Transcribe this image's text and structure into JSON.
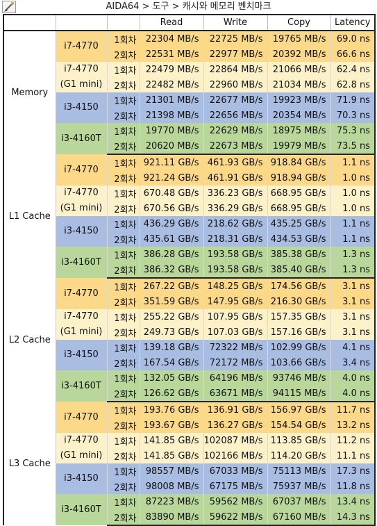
{
  "window": {
    "title": "AIDA64 > 도구 > 캐시와 메모리 벤치마크",
    "icon": "brush-icon"
  },
  "headers": [
    "",
    "",
    "",
    "Read",
    "Write",
    "Copy",
    "Latency"
  ],
  "colors": {
    "orange": "#fcd988",
    "cream": "#fdf1c9",
    "blue": "#a9bde3",
    "green": "#b9d79b"
  },
  "groups": [
    {
      "name": "Memory",
      "cpus": [
        {
          "label": [
            "i7-4770"
          ],
          "color": "orange",
          "runs": [
            {
              "run": "1회차",
              "read": "22304 MB/s",
              "write": "22725 MB/s",
              "copy": "19765 MB/s",
              "latency": "69.0 ns"
            },
            {
              "run": "2회차",
              "read": "22531 MB/s",
              "write": "22977 MB/s",
              "copy": "20392 MB/s",
              "latency": "66.6 ns"
            }
          ]
        },
        {
          "label": [
            "i7-4770",
            "(G1 mini)"
          ],
          "color": "cream",
          "runs": [
            {
              "run": "1회차",
              "read": "22479 MB/s",
              "write": "22864 MB/s",
              "copy": "21066 MB/s",
              "latency": "62.4 ns"
            },
            {
              "run": "2회차",
              "read": "22482 MB/s",
              "write": "22960 MB/s",
              "copy": "21034 MB/s",
              "latency": "62.8 ns"
            }
          ]
        },
        {
          "label": [
            "i3-4150"
          ],
          "color": "blue",
          "runs": [
            {
              "run": "1회차",
              "read": "21301 MB/s",
              "write": "22677 MB/s",
              "copy": "19923 MB/s",
              "latency": "71.9 ns"
            },
            {
              "run": "2회차",
              "read": "21398 MB/s",
              "write": "22656 MB/s",
              "copy": "20354 MB/s",
              "latency": "70.3 ns"
            }
          ]
        },
        {
          "label": [
            "i3-4160T"
          ],
          "color": "green",
          "runs": [
            {
              "run": "1회차",
              "read": "19770 MB/s",
              "write": "22629 MB/s",
              "copy": "18975 MB/s",
              "latency": "75.3 ns"
            },
            {
              "run": "2회차",
              "read": "20620 MB/s",
              "write": "22673 MB/s",
              "copy": "19979 MB/s",
              "latency": "73.5 ns"
            }
          ]
        }
      ]
    },
    {
      "name": "L1 Cache",
      "cpus": [
        {
          "label": [
            "i7-4770"
          ],
          "color": "orange",
          "runs": [
            {
              "run": "1회차",
              "read": "921.11 GB/s",
              "write": "461.93 GB/s",
              "copy": "918.84 GB/s",
              "latency": "1.1 ns"
            },
            {
              "run": "2회차",
              "read": "921.24 GB/s",
              "write": "461.91 GB/s",
              "copy": "918.94 GB/s",
              "latency": "1.0 ns"
            }
          ]
        },
        {
          "label": [
            "i7-4770",
            "(G1 mini)"
          ],
          "color": "cream",
          "runs": [
            {
              "run": "1회차",
              "read": "670.48 GB/s",
              "write": "336.23 GB/s",
              "copy": "668.95 GB/s",
              "latency": "1.0 ns"
            },
            {
              "run": "2회차",
              "read": "670.56 GB/s",
              "write": "336.29 GB/s",
              "copy": "668.95 GB/s",
              "latency": "1.0 ns"
            }
          ]
        },
        {
          "label": [
            "i3-4150"
          ],
          "color": "blue",
          "runs": [
            {
              "run": "1회차",
              "read": "436.29 GB/s",
              "write": "218.62 GB/s",
              "copy": "435.25 GB/s",
              "latency": "1.1 ns"
            },
            {
              "run": "2회차",
              "read": "435.61 GB/s",
              "write": "218.31 GB/s",
              "copy": "434.53 GB/s",
              "latency": "1.1 ns"
            }
          ]
        },
        {
          "label": [
            "i3-4160T"
          ],
          "color": "green",
          "runs": [
            {
              "run": "1회차",
              "read": "386.28 GB/s",
              "write": "193.58 GB/s",
              "copy": "385.38 GB/s",
              "latency": "1.3 ns"
            },
            {
              "run": "2회차",
              "read": "386.32 GB/s",
              "write": "193.58 GB/s",
              "copy": "385.40 GB/s",
              "latency": "1.3 ns"
            }
          ]
        }
      ]
    },
    {
      "name": "L2 Cache",
      "cpus": [
        {
          "label": [
            "i7-4770"
          ],
          "color": "orange",
          "runs": [
            {
              "run": "1회차",
              "read": "267.22 GB/s",
              "write": "148.25 GB/s",
              "copy": "174.56 GB/s",
              "latency": "3.1 ns"
            },
            {
              "run": "2회차",
              "read": "351.59 GB/s",
              "write": "147.95 GB/s",
              "copy": "216.30 GB/s",
              "latency": "3.1 ns"
            }
          ]
        },
        {
          "label": [
            "i7-4770",
            "(G1 mini)"
          ],
          "color": "cream",
          "runs": [
            {
              "run": "1회차",
              "read": "255.22 GB/s",
              "write": "107.95 GB/s",
              "copy": "157.35 GB/s",
              "latency": "3.1 ns"
            },
            {
              "run": "2회차",
              "read": "249.73 GB/s",
              "write": "107.03 GB/s",
              "copy": "157.16 GB/s",
              "latency": "3.1 ns"
            }
          ]
        },
        {
          "label": [
            "i3-4150"
          ],
          "color": "blue",
          "runs": [
            {
              "run": "1회차",
              "read": "139.18 GB/s",
              "write": "72322 MB/s",
              "copy": "102.99 GB/s",
              "latency": "4.1 ns"
            },
            {
              "run": "2회차",
              "read": "167.54 GB/s",
              "write": "72172 MB/s",
              "copy": "103.66 GB/s",
              "latency": "3.4 ns"
            }
          ]
        },
        {
          "label": [
            "i3-4160T"
          ],
          "color": "green",
          "runs": [
            {
              "run": "1회차",
              "read": "132.05 GB/s",
              "write": "64196 MB/s",
              "copy": "93746 MB/s",
              "latency": "4.0 ns"
            },
            {
              "run": "2회차",
              "read": "126.62 GB/s",
              "write": "63671 MB/s",
              "copy": "94115 MB/s",
              "latency": "4.0 ns"
            }
          ]
        }
      ]
    },
    {
      "name": "L3 Cache",
      "cpus": [
        {
          "label": [
            "i7-4770"
          ],
          "color": "orange",
          "runs": [
            {
              "run": "1회차",
              "read": "193.76 GB/s",
              "write": "136.91 GB/s",
              "copy": "156.97 GB/s",
              "latency": "11.7 ns"
            },
            {
              "run": "2회차",
              "read": "193.67 GB/s",
              "write": "136.27 GB/s",
              "copy": "154.54 GB/s",
              "latency": "13.2 ns"
            }
          ]
        },
        {
          "label": [
            "i7-4770",
            "(G1 mini)"
          ],
          "color": "cream",
          "runs": [
            {
              "run": "1회차",
              "read": "141.85 GB/s",
              "write": "102087 MB/s",
              "copy": "113.85 GB/s",
              "latency": "11.2 ns"
            },
            {
              "run": "2회차",
              "read": "141.85 GB/s",
              "write": "102166 MB/s",
              "copy": "114.20 GB/s",
              "latency": "11.1 ns"
            }
          ]
        },
        {
          "label": [
            "i3-4150"
          ],
          "color": "blue",
          "runs": [
            {
              "run": "1회차",
              "read": "98557 MB/s",
              "write": "67033 MB/s",
              "copy": "75113 MB/s",
              "latency": "17.3 ns"
            },
            {
              "run": "2회차",
              "read": "98008 MB/s",
              "write": "67175 MB/s",
              "copy": "75937 MB/s",
              "latency": "11.8 ns"
            }
          ]
        },
        {
          "label": [
            "i3-4160T"
          ],
          "color": "green",
          "runs": [
            {
              "run": "1회차",
              "read": "87223 MB/s",
              "write": "59562 MB/s",
              "copy": "67037 MB/s",
              "latency": "13.4 ns"
            },
            {
              "run": "2회차",
              "read": "83890 MB/s",
              "write": "59622 MB/s",
              "copy": "67160 MB/s",
              "latency": "14.3 ns"
            }
          ]
        }
      ]
    }
  ]
}
